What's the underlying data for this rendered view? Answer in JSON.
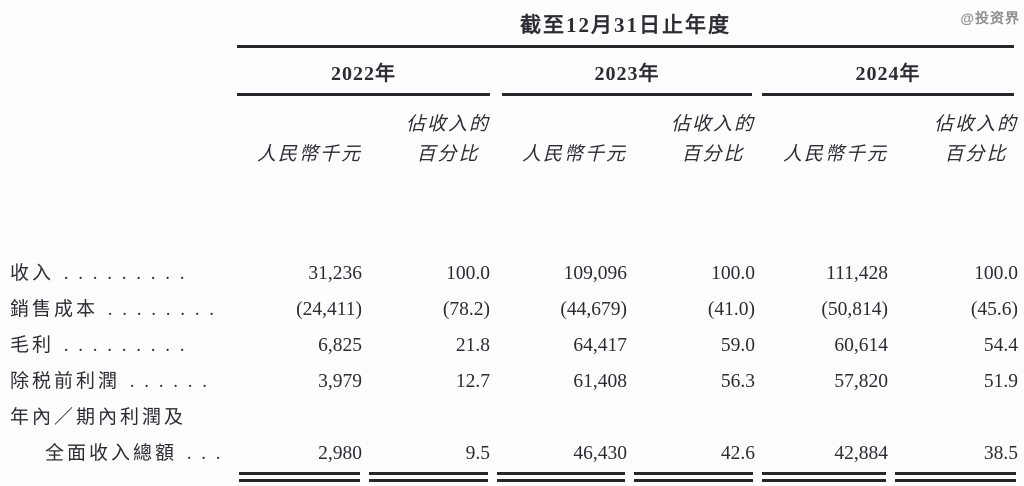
{
  "watermark": "@投资界",
  "table": {
    "title": "截至12月31日止年度",
    "year_groups": [
      {
        "year": "2022年",
        "col_headers": {
          "amount": "人民幣千元",
          "pct_line1": "佔收入的",
          "pct_line2": "百分比"
        }
      },
      {
        "year": "2023年",
        "col_headers": {
          "amount": "人民幣千元",
          "pct_line1": "佔收入的",
          "pct_line2": "百分比"
        }
      },
      {
        "year": "2024年",
        "col_headers": {
          "amount": "人民幣千元",
          "pct_line1": "佔收入的",
          "pct_line2": "百分比"
        }
      }
    ],
    "rows": [
      {
        "label": "收入",
        "leader": " . . . . . . . . .",
        "values": [
          "31,236",
          "100.0",
          "109,096",
          "100.0",
          "111,428",
          "100.0"
        ]
      },
      {
        "label": "銷售成本",
        "leader": " . . . . . . . .",
        "values": [
          "(24,411)",
          "(78.2)",
          "(44,679)",
          "(41.0)",
          "(50,814)",
          "(45.6)"
        ]
      },
      {
        "label": "毛利",
        "leader": " . . . . . . . . .",
        "values": [
          "6,825",
          "21.8",
          "64,417",
          "59.0",
          "60,614",
          "54.4"
        ]
      },
      {
        "label": "除税前利潤",
        "leader": " . . . . . .",
        "values": [
          "3,979",
          "12.7",
          "61,408",
          "56.3",
          "57,820",
          "51.9"
        ]
      },
      {
        "label": "年內／期內利潤及",
        "label2": "全面收入總額",
        "leader": " . . .",
        "values": [
          "2,980",
          "9.5",
          "46,430",
          "42.6",
          "42,884",
          "38.5"
        ]
      }
    ]
  }
}
